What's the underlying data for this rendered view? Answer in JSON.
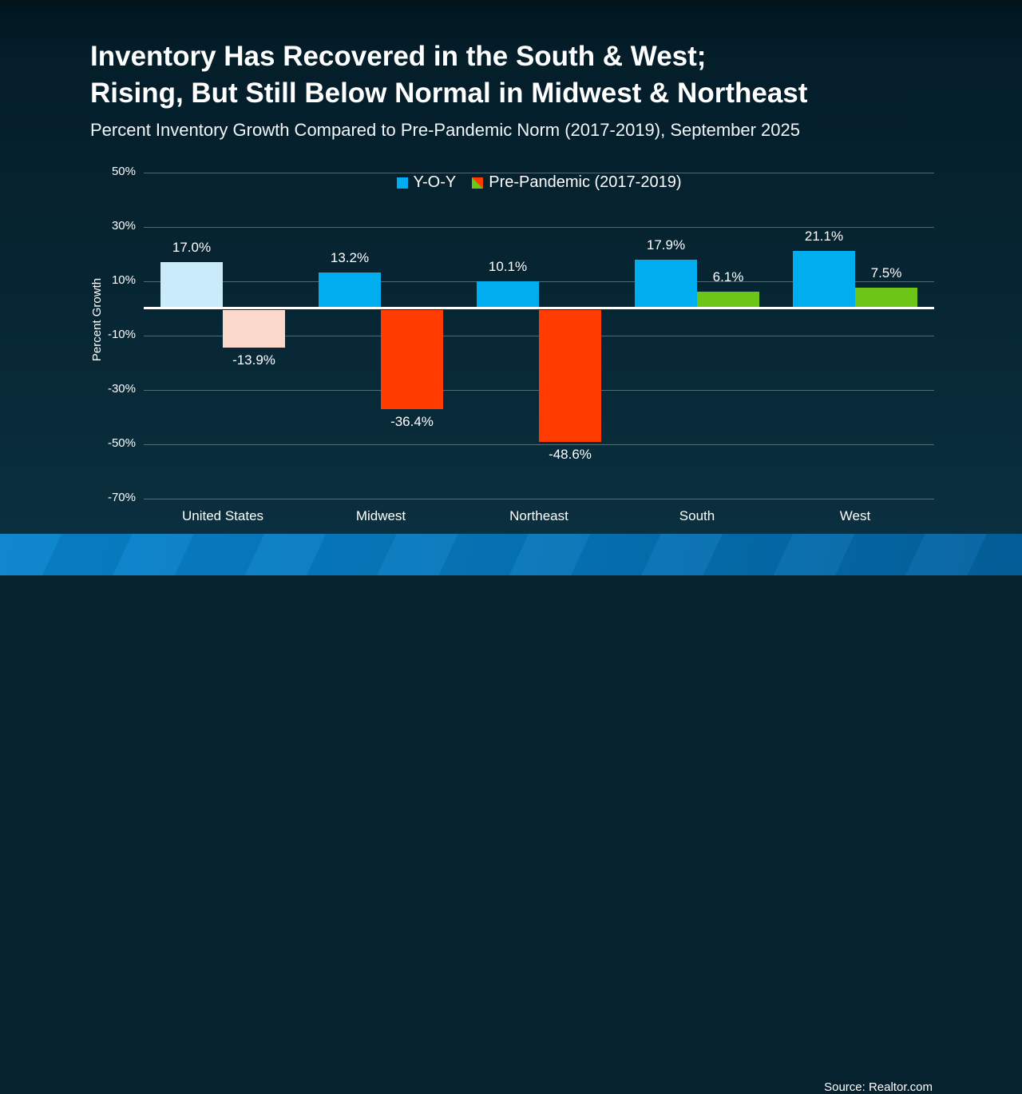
{
  "slide": {
    "title_line1": "Inventory Has Recovered in the South & West;",
    "title_line2": "Rising, But Still Below Normal in Midwest & Northeast",
    "subtitle": "Percent Inventory Growth Compared to Pre-Pandemic Norm (2017-2019), September 2025",
    "source": "Source: Realtor.com"
  },
  "colors": {
    "background_top": "#041E2A",
    "background_bottom": "#0B3140",
    "yoy_blue": "#00AEEF",
    "yoy_blue_muted": "#C9EBFA",
    "negative_red": "#FF3B00",
    "negative_red_muted": "#FBD8CC",
    "positive_green": "#6CC417",
    "footer_blue_left": "#0883CD",
    "footer_blue_right": "#03619E",
    "zero_line": "#FFFFFF",
    "gridline": "#A9BEC8"
  },
  "chart_data": {
    "type": "bar",
    "title": "Inventory Has Recovered in the South & West; Rising, But Still Below Normal in Midwest & Northeast",
    "subtitle": "Percent Inventory Growth Compared to Pre-Pandemic Norm (2017-2019), September 2025",
    "categories": [
      "United States",
      "Midwest",
      "Northeast",
      "South",
      "West"
    ],
    "series": [
      {
        "name": "Y-O-Y",
        "values": [
          17.0,
          13.2,
          10.1,
          17.9,
          21.1
        ],
        "labels": [
          "17.0%",
          "13.2%",
          "10.1%",
          "17.9%",
          "21.1%"
        ],
        "colors": [
          "#C9EBFA",
          "#00AEEF",
          "#00AEEF",
          "#00AEEF",
          "#00AEEF"
        ]
      },
      {
        "name": "Pre-Pandemic (2017-2019)",
        "values": [
          -13.9,
          -36.4,
          -48.6,
          6.1,
          7.5
        ],
        "labels": [
          "-13.9%",
          "-36.4%",
          "-48.6%",
          "6.1%",
          "7.5%"
        ],
        "colors": [
          "#FBD8CC",
          "#FF3B00",
          "#FF3B00",
          "#6CC417",
          "#6CC417"
        ]
      }
    ],
    "xlabel": "",
    "ylabel": "Percent Growth",
    "ylim": [
      -70,
      50
    ],
    "yticks": [
      50,
      30,
      10,
      -10,
      -30,
      -50,
      -70
    ],
    "ytick_labels": [
      "50%",
      "30%",
      "10%",
      "-10%",
      "-30%",
      "-50%",
      "-70%"
    ],
    "grid": "horizontal",
    "legend_position": "top-center",
    "legend": [
      {
        "label": "Y-O-Y",
        "color": "#00AEEF",
        "swatch": "solid"
      },
      {
        "label": "Pre-Pandemic (2017-2019)",
        "color_positive": "#6CC417",
        "color_negative": "#FF3B00",
        "swatch": "split-diagonal"
      }
    ],
    "source": "Source: Realtor.com"
  }
}
